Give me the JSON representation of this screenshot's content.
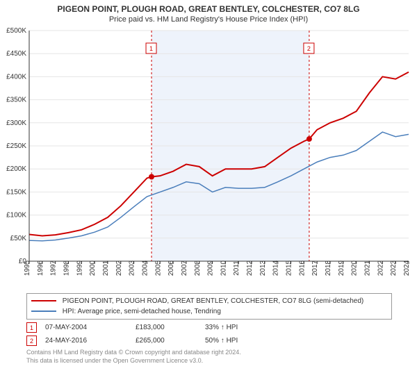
{
  "title": "PIGEON POINT, PLOUGH ROAD, GREAT BENTLEY, COLCHESTER, CO7 8LG",
  "subtitle": "Price paid vs. HM Land Registry's House Price Index (HPI)",
  "chart": {
    "type": "line",
    "background_color": "#ffffff",
    "plot_bg": "#ffffff",
    "highlight_bg": "#eef3fb",
    "grid_color": "#e5e5e5",
    "axis_color": "#333333",
    "ylim": [
      0,
      500000
    ],
    "ytick_step": 50000,
    "y_ticks": [
      "£0",
      "£50K",
      "£100K",
      "£150K",
      "£200K",
      "£250K",
      "£300K",
      "£350K",
      "£400K",
      "£450K",
      "£500K"
    ],
    "x_years": [
      1995,
      1996,
      1997,
      1998,
      1999,
      2000,
      2001,
      2002,
      2003,
      2004,
      2005,
      2006,
      2007,
      2008,
      2009,
      2010,
      2011,
      2012,
      2013,
      2014,
      2015,
      2016,
      2017,
      2018,
      2019,
      2020,
      2021,
      2022,
      2023,
      2024
    ],
    "series": [
      {
        "name": "property",
        "label": "PIGEON POINT, PLOUGH ROAD, GREAT BENTLEY, COLCHESTER, CO7 8LG (semi-detached)",
        "color": "#cc0000",
        "width": 2,
        "data": [
          [
            1995,
            58000
          ],
          [
            1996,
            55000
          ],
          [
            1997,
            57000
          ],
          [
            1998,
            62000
          ],
          [
            1999,
            68000
          ],
          [
            2000,
            80000
          ],
          [
            2001,
            95000
          ],
          [
            2002,
            120000
          ],
          [
            2003,
            150000
          ],
          [
            2004,
            180000
          ],
          [
            2004.35,
            183000
          ],
          [
            2005,
            185000
          ],
          [
            2006,
            195000
          ],
          [
            2007,
            210000
          ],
          [
            2008,
            205000
          ],
          [
            2009,
            185000
          ],
          [
            2010,
            200000
          ],
          [
            2011,
            200000
          ],
          [
            2012,
            200000
          ],
          [
            2013,
            205000
          ],
          [
            2014,
            225000
          ],
          [
            2015,
            245000
          ],
          [
            2016,
            260000
          ],
          [
            2016.4,
            265000
          ],
          [
            2017,
            285000
          ],
          [
            2018,
            300000
          ],
          [
            2019,
            310000
          ],
          [
            2020,
            325000
          ],
          [
            2021,
            365000
          ],
          [
            2022,
            400000
          ],
          [
            2023,
            395000
          ],
          [
            2024,
            410000
          ]
        ]
      },
      {
        "name": "hpi",
        "label": "HPI: Average price, semi-detached house, Tendring",
        "color": "#4a7ebb",
        "width": 1.5,
        "data": [
          [
            1995,
            45000
          ],
          [
            1996,
            44000
          ],
          [
            1997,
            46000
          ],
          [
            1998,
            50000
          ],
          [
            1999,
            55000
          ],
          [
            2000,
            63000
          ],
          [
            2001,
            74000
          ],
          [
            2002,
            95000
          ],
          [
            2003,
            118000
          ],
          [
            2004,
            140000
          ],
          [
            2005,
            150000
          ],
          [
            2006,
            160000
          ],
          [
            2007,
            172000
          ],
          [
            2008,
            168000
          ],
          [
            2009,
            150000
          ],
          [
            2010,
            160000
          ],
          [
            2011,
            158000
          ],
          [
            2012,
            158000
          ],
          [
            2013,
            160000
          ],
          [
            2014,
            172000
          ],
          [
            2015,
            185000
          ],
          [
            2016,
            200000
          ],
          [
            2017,
            215000
          ],
          [
            2018,
            225000
          ],
          [
            2019,
            230000
          ],
          [
            2020,
            240000
          ],
          [
            2021,
            260000
          ],
          [
            2022,
            280000
          ],
          [
            2023,
            270000
          ],
          [
            2024,
            275000
          ]
        ]
      }
    ],
    "sales_markers": [
      {
        "n": "1",
        "year": 2004.35,
        "price": 183000
      },
      {
        "n": "2",
        "year": 2016.4,
        "price": 265000
      }
    ]
  },
  "legend": {
    "series1": "PIGEON POINT, PLOUGH ROAD, GREAT BENTLEY, COLCHESTER, CO7 8LG (semi-detached)",
    "series2": "HPI: Average price, semi-detached house, Tendring"
  },
  "sales": [
    {
      "n": "1",
      "date": "07-MAY-2004",
      "price": "£183,000",
      "pct": "33% ↑ HPI"
    },
    {
      "n": "2",
      "date": "24-MAY-2016",
      "price": "£265,000",
      "pct": "50% ↑ HPI"
    }
  ],
  "license_line1": "Contains HM Land Registry data © Crown copyright and database right 2024.",
  "license_line2": "This data is licensed under the Open Government Licence v3.0."
}
